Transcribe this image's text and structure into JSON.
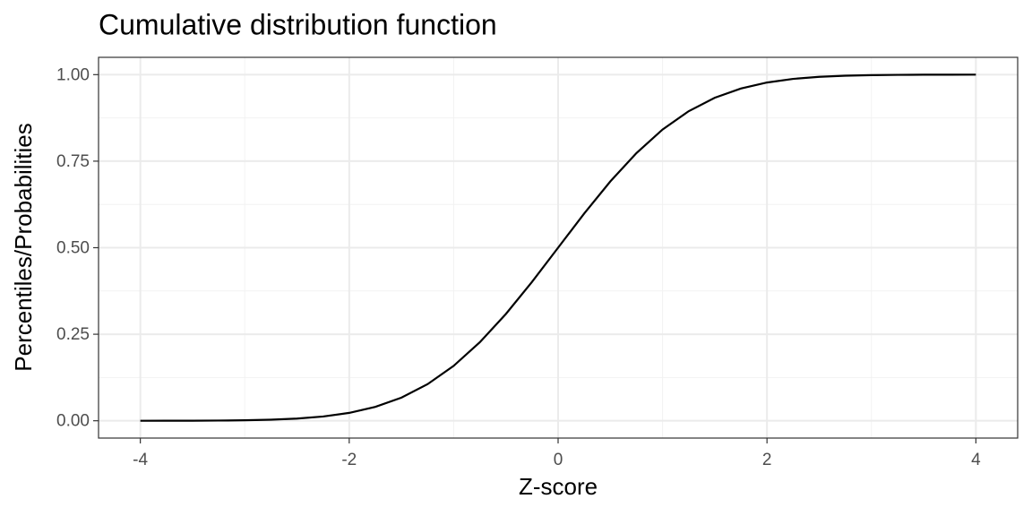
{
  "chart_data": {
    "type": "line",
    "title": "Cumulative distribution function",
    "x_label": "Z-score",
    "y_label": "Percentiles/Probabilities",
    "x": [
      -4,
      -3.75,
      -3.5,
      -3.25,
      -3,
      -2.75,
      -2.5,
      -2.25,
      -2,
      -1.75,
      -1.5,
      -1.25,
      -1,
      -0.75,
      -0.5,
      -0.25,
      0,
      0.25,
      0.5,
      0.75,
      1,
      1.25,
      1.5,
      1.75,
      2,
      2.25,
      2.5,
      2.75,
      3,
      3.25,
      3.5,
      3.75,
      4
    ],
    "series": [
      {
        "color": "#000000",
        "values": [
          3e-05,
          9e-05,
          0.00023,
          0.00058,
          0.00135,
          0.00298,
          0.00621,
          0.01222,
          0.02275,
          0.04006,
          0.06681,
          0.10565,
          0.15866,
          0.22663,
          0.30854,
          0.40129,
          0.5,
          0.59871,
          0.69146,
          0.77337,
          0.84134,
          0.89435,
          0.93319,
          0.95994,
          0.97725,
          0.98778,
          0.99379,
          0.99702,
          0.99865,
          0.99942,
          0.99977,
          0.99991,
          0.99997
        ]
      }
    ],
    "xlim": [
      -4.4,
      4.4
    ],
    "xticks": [
      -4,
      -2,
      0,
      2,
      4
    ],
    "ylim": [
      -0.05,
      1.05
    ],
    "yticks": [
      {
        "value": 0,
        "label": "0.00"
      },
      {
        "value": 0.25,
        "label": "0.25"
      },
      {
        "value": 0.5,
        "label": "0.50"
      },
      {
        "value": 0.75,
        "label": "0.75"
      },
      {
        "value": 1,
        "label": "1.00"
      }
    ],
    "grid": true
  }
}
